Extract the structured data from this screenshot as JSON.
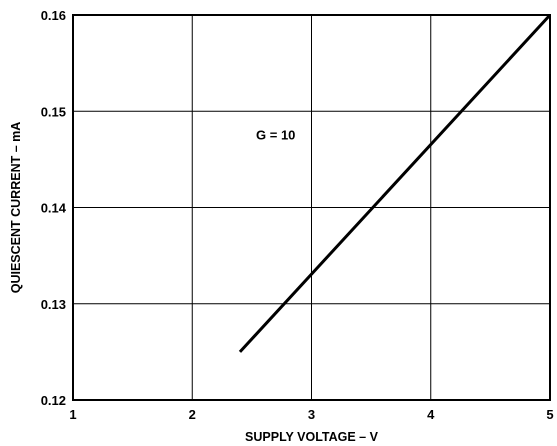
{
  "chart_data": {
    "type": "line",
    "title": "",
    "xlabel": "SUPPLY VOLTAGE – V",
    "ylabel": "QUIESCENT CURRENT – mA",
    "xlim": [
      1,
      5
    ],
    "ylim": [
      0.12,
      0.16
    ],
    "x_ticks": [
      1,
      2,
      3,
      4,
      5
    ],
    "y_ticks": [
      0.12,
      0.13,
      0.14,
      0.15,
      0.16
    ],
    "x_tick_labels": [
      "1",
      "2",
      "3",
      "4",
      "5"
    ],
    "y_tick_labels": [
      "0.12",
      "0.13",
      "0.14",
      "0.15",
      "0.16"
    ],
    "grid": true,
    "series": [
      {
        "x": [
          2.4,
          5.0
        ],
        "y": [
          0.125,
          0.16
        ],
        "color": "#000000"
      }
    ],
    "annotations": [
      {
        "text": "G = 10",
        "x": 2.7,
        "y": 0.1475
      }
    ]
  }
}
